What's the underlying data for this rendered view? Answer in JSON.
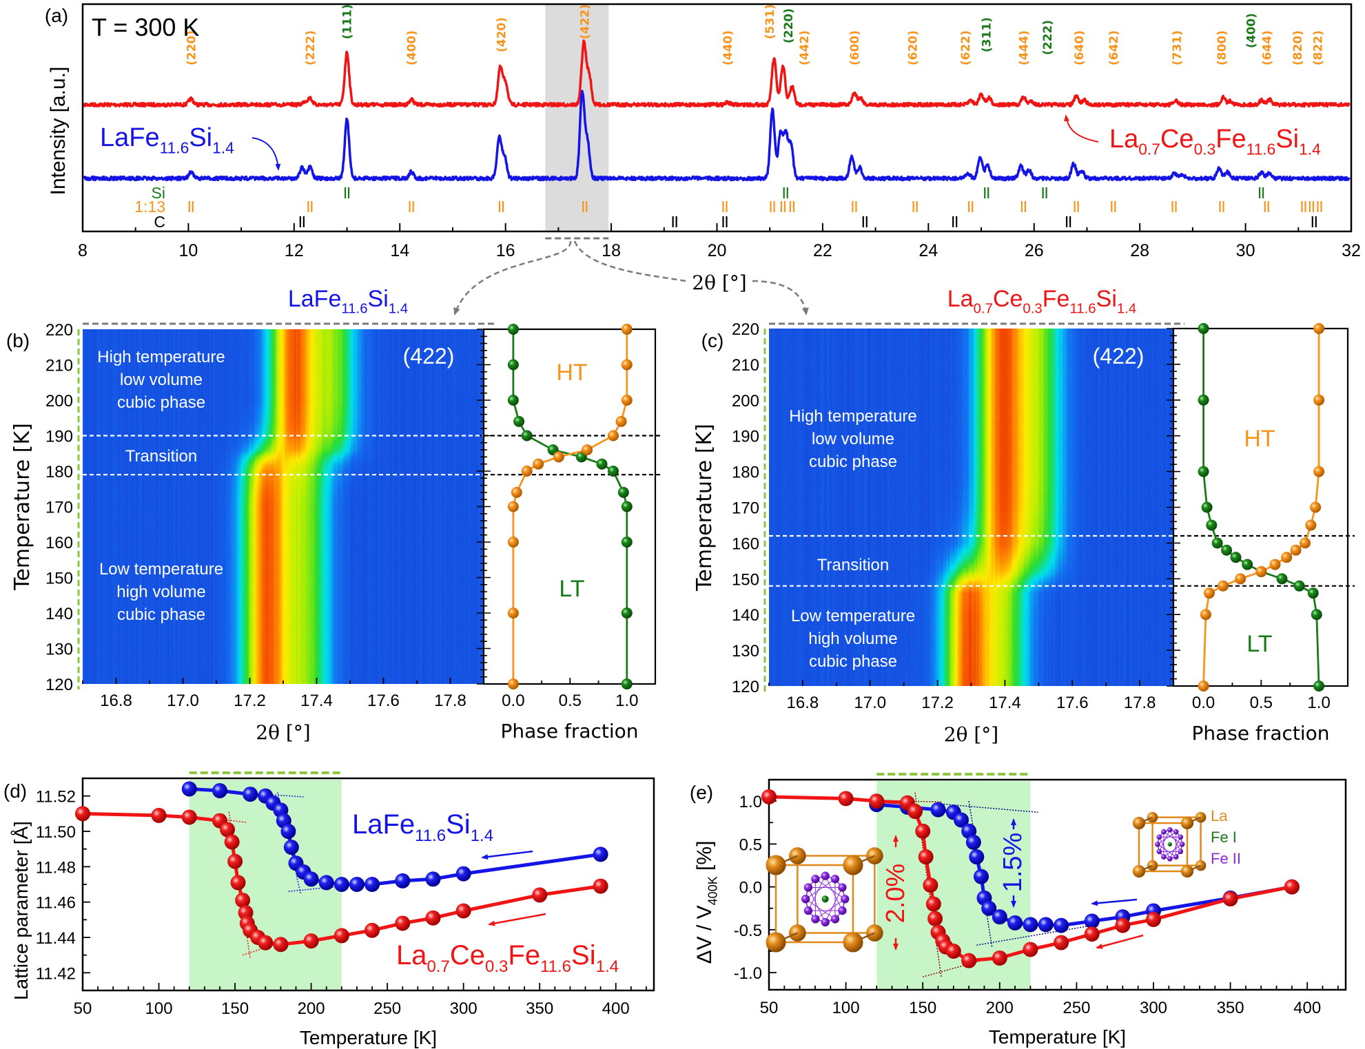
{
  "panel_labels": [
    "(a)",
    "(b)",
    "(c)",
    "(d)",
    "(e)"
  ],
  "formulas": {
    "lafesi": [
      "LaFe",
      "11.6",
      "Si",
      "1.4"
    ],
    "lacefesi": [
      "La",
      "0.7",
      "Ce",
      "0.3",
      "Fe",
      "11.6",
      "Si",
      "1.4"
    ],
    "dv_label": [
      "ΔV / V",
      "400K",
      " [%]"
    ]
  },
  "colors": {
    "red_sample": "#f01414",
    "blue_sample": "#1414e6",
    "phase_1_13": "#f7941d",
    "phase_si": "#1a7a1a",
    "phase_c": "#000000",
    "transition_shade": "#c8f5c8",
    "highlight_band": "#dcdcdc",
    "la_atom": "#e0891a",
    "fe1_atom": "#1a7a1a",
    "fe2_atom": "#8a2be2"
  },
  "chart_data": [
    {
      "type": "line",
      "annotation": "T = 300 K",
      "xlabel": "2θ [°]",
      "ylabel": "Intensity [a.u.]",
      "xlim": [
        8,
        32
      ],
      "xtick_labels": [
        "8",
        "10",
        "12",
        "14",
        "16",
        "18",
        "20",
        "22",
        "24",
        "26",
        "28",
        "30",
        "32"
      ],
      "highlight_range": [
        16.75,
        17.95
      ],
      "series": [
        {
          "formula": "lacefesi",
          "color": "#f01414",
          "peaks": [
            [
              10.05,
              0.08
            ],
            [
              12.2,
              0.04
            ],
            [
              12.3,
              0.09
            ],
            [
              13.0,
              0.71
            ],
            [
              14.22,
              0.07
            ],
            [
              15.9,
              0.5
            ],
            [
              16.0,
              0.3
            ],
            [
              17.48,
              0.83
            ],
            [
              17.58,
              0.4
            ],
            [
              20.2,
              0.03
            ],
            [
              21.08,
              0.62
            ],
            [
              21.25,
              0.52
            ],
            [
              21.42,
              0.25
            ],
            [
              22.6,
              0.16
            ],
            [
              22.72,
              0.09
            ],
            [
              24.8,
              0.06
            ],
            [
              25.0,
              0.15
            ],
            [
              25.15,
              0.09
            ],
            [
              25.8,
              0.1
            ],
            [
              25.95,
              0.05
            ],
            [
              26.8,
              0.11
            ],
            [
              26.95,
              0.06
            ],
            [
              28.68,
              0.05
            ],
            [
              29.58,
              0.1
            ],
            [
              29.72,
              0.05
            ],
            [
              30.3,
              0.06
            ],
            [
              30.45,
              0.07
            ]
          ]
        },
        {
          "formula": "lafesi",
          "color": "#1414e6",
          "peaks": [
            [
              10.05,
              0.09
            ],
            [
              12.15,
              0.15
            ],
            [
              12.3,
              0.15
            ],
            [
              13.0,
              0.8
            ],
            [
              14.22,
              0.09
            ],
            [
              15.88,
              0.55
            ],
            [
              15.98,
              0.3
            ],
            [
              17.45,
              1.15
            ],
            [
              17.55,
              0.5
            ],
            [
              21.05,
              0.93
            ],
            [
              21.2,
              0.6
            ],
            [
              21.3,
              0.6
            ],
            [
              21.4,
              0.45
            ],
            [
              22.55,
              0.3
            ],
            [
              22.7,
              0.15
            ],
            [
              24.75,
              0.07
            ],
            [
              24.98,
              0.3
            ],
            [
              25.12,
              0.18
            ],
            [
              25.75,
              0.17
            ],
            [
              25.9,
              0.12
            ],
            [
              26.75,
              0.2
            ],
            [
              26.9,
              0.1
            ],
            [
              28.65,
              0.07
            ],
            [
              28.8,
              0.05
            ],
            [
              29.5,
              0.14
            ],
            [
              29.65,
              0.09
            ],
            [
              30.3,
              0.08
            ],
            [
              30.45,
              0.08
            ]
          ]
        }
      ],
      "reflections": [
        {
          "label": "(220)",
          "phase": "1:13",
          "x": 10.05
        },
        {
          "label": "(222)",
          "phase": "1:13",
          "x": 12.3
        },
        {
          "label": "(111)",
          "phase": "Si",
          "x": 13.0
        },
        {
          "label": "(400)",
          "phase": "1:13",
          "x": 14.22
        },
        {
          "label": "(420)",
          "phase": "1:13",
          "x": 15.92
        },
        {
          "label": "(422)",
          "phase": "1:13",
          "x": 17.5
        },
        {
          "label": "(440)",
          "phase": "1:13",
          "x": 20.2
        },
        {
          "label": "(531)",
          "phase": "1:13",
          "x": 21.0
        },
        {
          "label": "(220)",
          "phase": "Si",
          "x": 21.35
        },
        {
          "label": "(442)",
          "phase": "1:13",
          "x": 21.65
        },
        {
          "label": "(600)",
          "phase": "1:13",
          "x": 22.6
        },
        {
          "label": "(620)",
          "phase": "1:13",
          "x": 23.7
        },
        {
          "label": "(622)",
          "phase": "1:13",
          "x": 24.7
        },
        {
          "label": "(311)",
          "phase": "Si",
          "x": 25.1
        },
        {
          "label": "(444)",
          "phase": "1:13",
          "x": 25.8
        },
        {
          "label": "(222)",
          "phase": "Si",
          "x": 26.25
        },
        {
          "label": "(640)",
          "phase": "1:13",
          "x": 26.85
        },
        {
          "label": "(642)",
          "phase": "1:13",
          "x": 27.5
        },
        {
          "label": "(731)",
          "phase": "1:13",
          "x": 28.7
        },
        {
          "label": "(800)",
          "phase": "1:13",
          "x": 29.55
        },
        {
          "label": "(400)",
          "phase": "Si",
          "x": 30.1
        },
        {
          "label": "(644)",
          "phase": "1:13",
          "x": 30.4
        },
        {
          "label": "(820)",
          "phase": "1:13",
          "x": 31.05
        },
        {
          "label": "(822)",
          "phase": "1:13",
          "x": 31.3
        }
      ],
      "tick_rows": [
        {
          "label": "Si",
          "color": "#1a7a1a",
          "positions": [
            13.0,
            21.3,
            25.1,
            26.2,
            30.3
          ]
        },
        {
          "label": "1:13",
          "color": "#f7941d",
          "positions": [
            10.05,
            12.3,
            14.22,
            15.92,
            17.5,
            20.15,
            21.05,
            21.25,
            21.42,
            22.6,
            23.75,
            24.8,
            25.8,
            26.8,
            27.5,
            28.65,
            29.55,
            30.4,
            31.1,
            31.25,
            31.4
          ]
        },
        {
          "label": "C",
          "color": "#000000",
          "positions": [
            12.15,
            19.2,
            20.15,
            22.8,
            24.5,
            26.65,
            31.3
          ]
        }
      ]
    },
    {
      "type": "heatmap",
      "formula": "lafesi",
      "annotation": "(422)",
      "xlabel": "2θ [°]",
      "ylabel": "Temperature [K]",
      "xlim": [
        16.7,
        17.9
      ],
      "ylim": [
        120,
        220
      ],
      "xticks": [
        16.8,
        17.0,
        17.2,
        17.4,
        17.6,
        17.8
      ],
      "xtick_labels": [
        "16.8",
        "17.0",
        "17.2",
        "17.4",
        "17.6",
        "17.8"
      ],
      "yticks": [
        120,
        130,
        140,
        150,
        160,
        170,
        180,
        190,
        200,
        210,
        220
      ],
      "ytick_labels": [
        "120",
        "130",
        "140",
        "150",
        "160",
        "170",
        "180",
        "190",
        "200",
        "210",
        "220"
      ],
      "region_labels": {
        "high": [
          "High temperature",
          "low volume",
          "cubic phase"
        ],
        "transition": "Transition",
        "low": [
          "Low temperature",
          "high volume",
          "cubic phase"
        ]
      },
      "transition_T": [
        179,
        190
      ],
      "peak_model": {
        "LT": [
          [
            17.25,
            1.0
          ],
          [
            17.37,
            0.55
          ]
        ],
        "HT": [
          [
            17.33,
            1.0
          ],
          [
            17.45,
            0.55
          ]
        ]
      },
      "phase_fraction": {
        "xlabel": "Phase fraction",
        "xlim": [
          -0.26,
          1.25
        ],
        "xticks": [
          0,
          0.5,
          1
        ],
        "xtick_labels": [
          "0.0",
          "0.5",
          "1.0"
        ],
        "labels": {
          "HT": "HT",
          "LT": "LT"
        },
        "T": [
          220,
          210,
          200,
          194,
          190,
          186,
          184,
          182,
          180,
          174,
          170,
          160,
          140,
          120
        ],
        "LT": [
          0,
          0,
          0,
          0.05,
          0.12,
          0.35,
          0.6,
          0.78,
          0.88,
          0.97,
          1,
          1,
          1,
          1
        ],
        "HT": [
          1,
          1,
          1,
          0.95,
          0.88,
          0.65,
          0.4,
          0.22,
          0.12,
          0.03,
          0,
          0,
          0,
          0
        ]
      }
    },
    {
      "type": "heatmap",
      "formula": "lacefesi",
      "annotation": "(422)",
      "xlabel": "2θ [°]",
      "ylabel": "Temperature [K]",
      "xlim": [
        16.7,
        17.9
      ],
      "ylim": [
        120,
        220
      ],
      "xticks": [
        16.8,
        17.0,
        17.2,
        17.4,
        17.6,
        17.8
      ],
      "xtick_labels": [
        "16.8",
        "17.0",
        "17.2",
        "17.4",
        "17.6",
        "17.8"
      ],
      "yticks": [
        120,
        130,
        140,
        150,
        160,
        170,
        180,
        190,
        200,
        210,
        220
      ],
      "ytick_labels": [
        "120",
        "130",
        "140",
        "150",
        "160",
        "170",
        "180",
        "190",
        "200",
        "210",
        "220"
      ],
      "region_labels": {
        "high": [
          "High temperature",
          "low volume",
          "cubic phase"
        ],
        "transition": "Transition",
        "low": [
          "Low temperature",
          "high volume",
          "cubic phase"
        ]
      },
      "transition_T": [
        148,
        162
      ],
      "peak_model": {
        "LT": [
          [
            17.29,
            1.0
          ],
          [
            17.4,
            0.55
          ]
        ],
        "HT": [
          [
            17.39,
            1.0
          ],
          [
            17.5,
            0.55
          ]
        ]
      },
      "phase_fraction": {
        "xlabel": "Phase fraction",
        "xlim": [
          -0.26,
          1.25
        ],
        "xticks": [
          0,
          0.5,
          1
        ],
        "xtick_labels": [
          "0.0",
          "0.5",
          "1.0"
        ],
        "labels": {
          "HT": "HT",
          "LT": "LT"
        },
        "T": [
          220,
          200,
          180,
          170,
          165,
          160,
          158,
          156,
          154,
          152,
          150,
          148,
          146,
          140,
          120
        ],
        "LT": [
          0,
          0,
          0,
          0.03,
          0.07,
          0.12,
          0.2,
          0.28,
          0.38,
          0.5,
          0.68,
          0.83,
          0.95,
          0.98,
          1
        ],
        "HT": [
          1,
          1,
          1,
          0.97,
          0.93,
          0.88,
          0.8,
          0.72,
          0.62,
          0.5,
          0.32,
          0.17,
          0.05,
          0.02,
          0
        ]
      }
    },
    {
      "type": "line",
      "xlabel": "Temperature [K]",
      "ylabel": "Lattice parameter [Å]",
      "xlim": [
        50,
        425
      ],
      "ylim": [
        11.41,
        11.53
      ],
      "xticks": [
        50,
        100,
        150,
        200,
        250,
        300,
        350,
        400
      ],
      "xtick_labels": [
        "50",
        "100",
        "150",
        "200",
        "250",
        "300",
        "350",
        "400"
      ],
      "yticks": [
        11.42,
        11.44,
        11.46,
        11.48,
        11.5,
        11.52
      ],
      "ytick_labels": [
        "11.42",
        "11.44",
        "11.46",
        "11.48",
        "11.50",
        "11.52"
      ],
      "shaded_range": [
        120,
        220
      ],
      "series": [
        {
          "formula": "lafesi",
          "color": "#1414e6",
          "x": [
            120,
            140,
            160,
            170,
            175,
            180,
            182,
            185,
            187,
            190,
            195,
            200,
            210,
            220,
            230,
            240,
            260,
            280,
            300,
            390
          ],
          "y": [
            11.524,
            11.523,
            11.521,
            11.52,
            11.516,
            11.512,
            11.506,
            11.5,
            11.491,
            11.482,
            11.477,
            11.473,
            11.471,
            11.47,
            11.47,
            11.47,
            11.472,
            11.473,
            11.476,
            11.487
          ]
        },
        {
          "formula": "lacefesi",
          "color": "#f01414",
          "x": [
            50,
            100,
            120,
            140,
            145,
            148,
            150,
            152,
            155,
            157,
            158,
            160,
            165,
            170,
            180,
            200,
            220,
            240,
            260,
            280,
            300,
            350,
            390
          ],
          "y": [
            11.51,
            11.509,
            11.508,
            11.506,
            11.501,
            11.494,
            11.483,
            11.471,
            11.461,
            11.454,
            11.448,
            11.444,
            11.44,
            11.437,
            11.436,
            11.438,
            11.441,
            11.444,
            11.448,
            11.451,
            11.455,
            11.464,
            11.469
          ]
        }
      ]
    },
    {
      "type": "line",
      "xlabel": "Temperature [K]",
      "ylabel_formula": "dv_label",
      "xlim": [
        50,
        425
      ],
      "ylim": [
        -1.2,
        1.25
      ],
      "xticks": [
        50,
        100,
        150,
        200,
        250,
        300,
        350,
        400
      ],
      "xtick_labels": [
        "50",
        "100",
        "150",
        "200",
        "250",
        "300",
        "350",
        "400"
      ],
      "yticks": [
        -1,
        -0.5,
        0,
        0.5,
        1
      ],
      "ytick_labels": [
        "-1.0",
        "-0.5",
        "0.0",
        "0.5",
        "1.0"
      ],
      "shaded_range": [
        120,
        220
      ],
      "annotations": {
        "red_jump": "2.0%",
        "blue_jump": "1.5%"
      },
      "inset_legend": [
        "La",
        "Fe I",
        "Fe II"
      ],
      "series": [
        {
          "formula": "lafesi",
          "color": "#1414e6",
          "x": [
            120,
            140,
            160,
            170,
            175,
            180,
            183,
            185,
            188,
            190,
            193,
            200,
            210,
            220,
            230,
            240,
            260,
            280,
            300,
            350,
            390
          ],
          "y": [
            0.96,
            0.93,
            0.9,
            0.87,
            0.78,
            0.65,
            0.52,
            0.35,
            0.12,
            -0.13,
            -0.25,
            -0.35,
            -0.42,
            -0.44,
            -0.44,
            -0.45,
            -0.4,
            -0.35,
            -0.28,
            -0.13,
            0.0
          ]
        },
        {
          "formula": "lacefesi",
          "color": "#f01414",
          "x": [
            50,
            100,
            120,
            140,
            145,
            150,
            152,
            155,
            157,
            158,
            160,
            163,
            165,
            170,
            180,
            200,
            220,
            240,
            260,
            280,
            300,
            350,
            390
          ],
          "y": [
            1.05,
            1.03,
            1.0,
            0.98,
            0.88,
            0.65,
            0.35,
            0.02,
            -0.2,
            -0.37,
            -0.53,
            -0.63,
            -0.7,
            -0.75,
            -0.86,
            -0.83,
            -0.73,
            -0.65,
            -0.55,
            -0.45,
            -0.38,
            -0.14,
            0.0
          ]
        }
      ]
    }
  ]
}
